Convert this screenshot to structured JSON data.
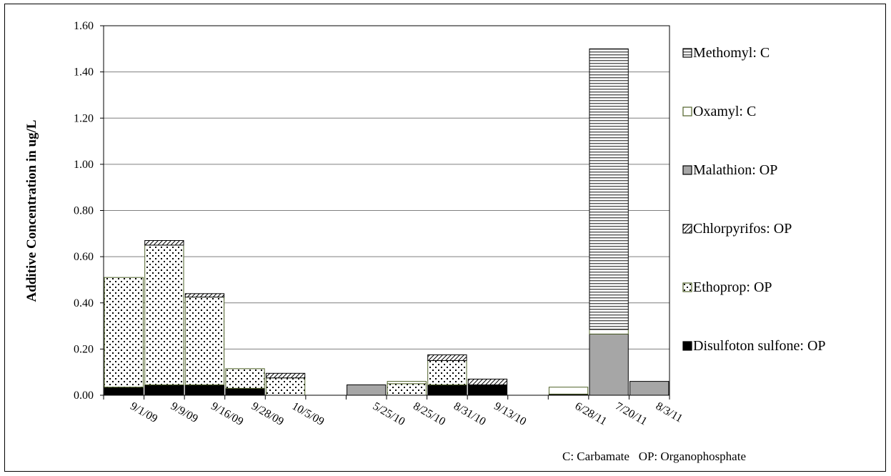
{
  "chart_data": {
    "type": "bar",
    "stacked": true,
    "ylabel": "Additive Concentration in ug/L",
    "xlabel": "",
    "title": "",
    "ylim": [
      0,
      1.6
    ],
    "yticks": [
      "0.00",
      "0.20",
      "0.40",
      "0.60",
      "0.80",
      "1.00",
      "1.20",
      "1.40",
      "1.60"
    ],
    "grid": "horizontal",
    "legend_position": "right",
    "footnote": "C: Carbamate   OP: Organophosphate",
    "categories": [
      "9/1/09",
      "9/9/09",
      "9/16/09",
      "9/28/09",
      "10/5/09",
      "5/25/10",
      "8/25/10",
      "8/31/10",
      "9/13/10",
      "6/28/11",
      "7/20/11",
      "8/3/11"
    ],
    "gap_after_category_index": [
      4,
      8
    ],
    "series": [
      {
        "name": "Disulfoton sulfone: OP",
        "pattern": "solid-black",
        "values": [
          0.035,
          0.045,
          0.045,
          0.03,
          0,
          0,
          0,
          0.045,
          0.045,
          0.005,
          0,
          0
        ]
      },
      {
        "name": "Ethoprop: OP",
        "pattern": "dots",
        "values": [
          0.475,
          0.605,
          0.38,
          0.085,
          0.075,
          0,
          0.05,
          0.105,
          0,
          0,
          0,
          0
        ]
      },
      {
        "name": "Chlorpyrifos: OP",
        "pattern": "diagonal-hatch",
        "values": [
          0,
          0.02,
          0.015,
          0,
          0.02,
          0,
          0,
          0.025,
          0.025,
          0,
          0,
          0
        ]
      },
      {
        "name": "Malathion: OP",
        "pattern": "solid-gray",
        "values": [
          0,
          0,
          0,
          0,
          0,
          0.045,
          0,
          0,
          0,
          0,
          0.265,
          0.06
        ]
      },
      {
        "name": "Oxamyl: C",
        "pattern": "white",
        "values": [
          0,
          0,
          0,
          0,
          0,
          0,
          0.01,
          0,
          0,
          0.03,
          0.02,
          0
        ]
      },
      {
        "name": "Methomyl: C",
        "pattern": "horizontal-lines",
        "values": [
          0,
          0,
          0,
          0,
          0,
          0,
          0,
          0,
          0,
          0,
          1.215,
          0
        ]
      }
    ],
    "colors": {
      "solid_black": "#000000",
      "solid_gray": "#a6a6a6",
      "outline_green": "#4f6228",
      "grid": "#7f7f7f"
    }
  }
}
